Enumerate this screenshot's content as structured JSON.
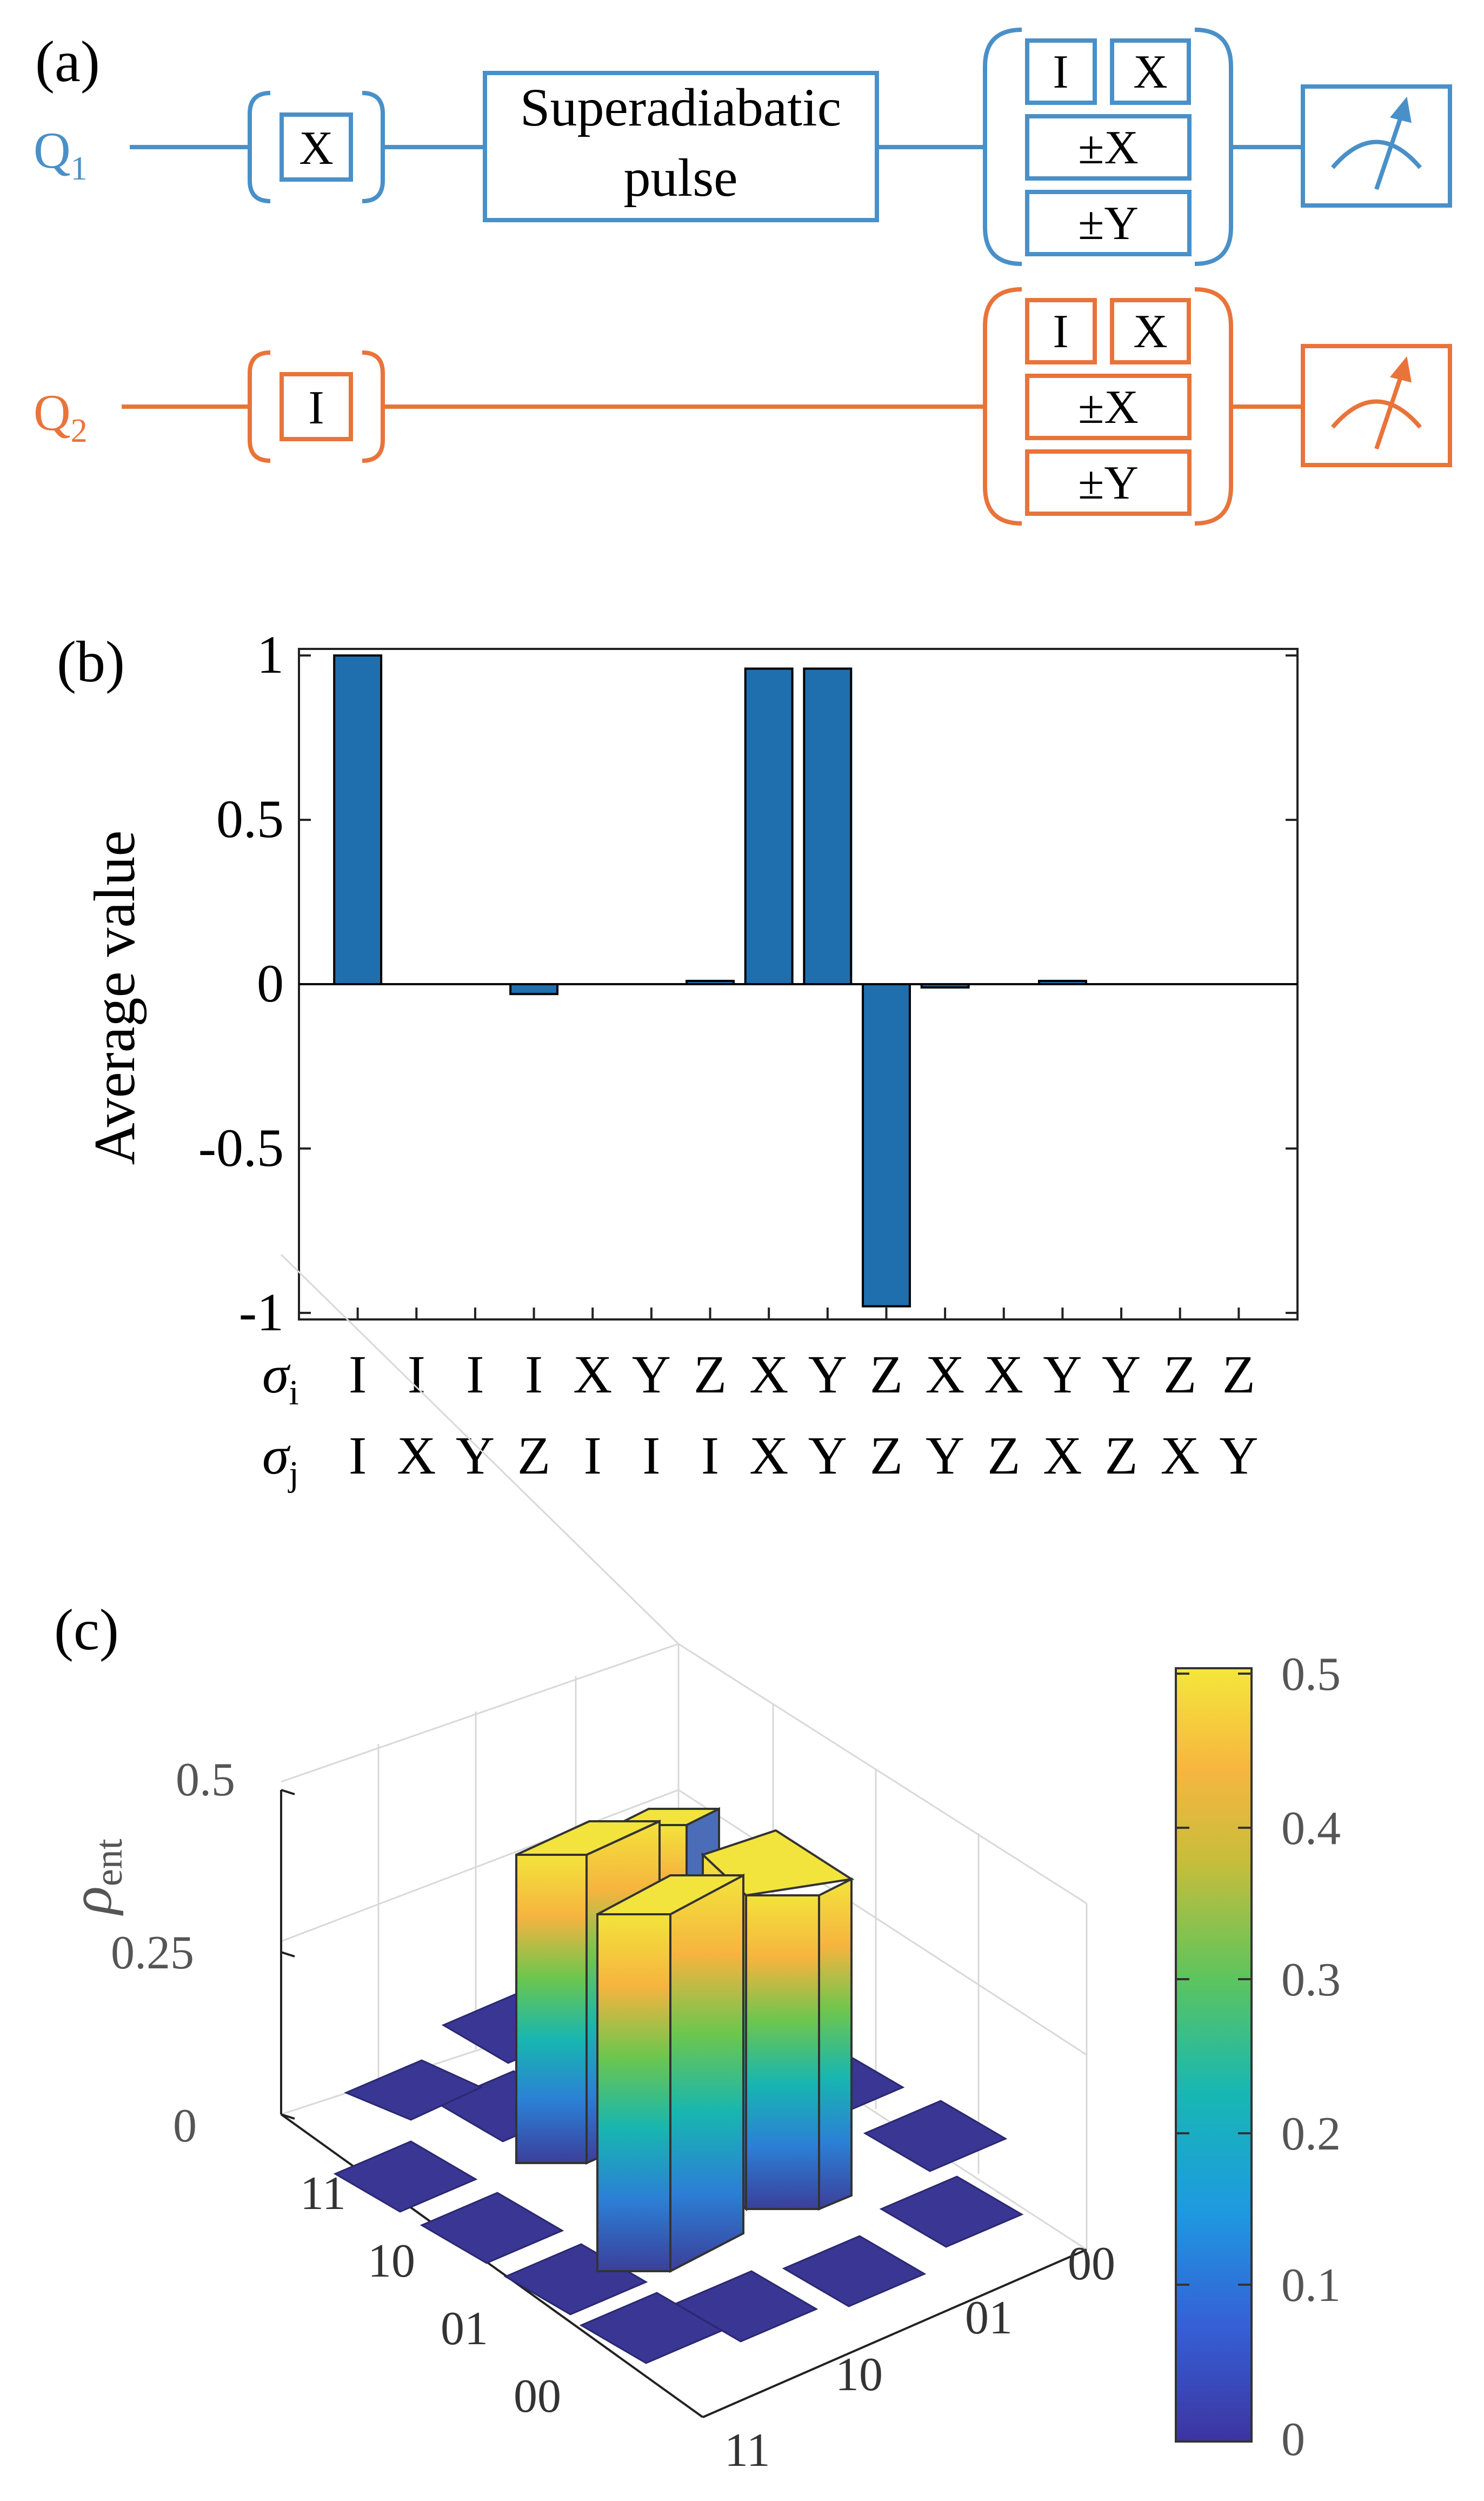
{
  "panels": {
    "a": "(a)",
    "b": "(b)",
    "c": "(c)"
  },
  "colors": {
    "q1": "#4a90c8",
    "q2": "#e8743b",
    "bar": "#1f6faf",
    "black": "#000000"
  },
  "circuit": {
    "q1": {
      "label": "Q",
      "sub": "1"
    },
    "q2": {
      "label": "Q",
      "sub": "2"
    },
    "q1_init_gate": "X",
    "q2_init_gate": "I",
    "pulse_line1": "Superadiabatic",
    "pulse_line2": "pulse",
    "tomo_i": "I",
    "tomo_x": "X",
    "tomo_px": "±X",
    "tomo_py": "±Y"
  },
  "chart_data": [
    {
      "type": "bar",
      "panel": "(b)",
      "ylabel": "Average value",
      "ylim": [
        -1.02,
        1.02
      ],
      "yticks": [
        1,
        0.5,
        0,
        -0.5,
        -1
      ],
      "ytick_labels": [
        "1",
        "0.5",
        "0",
        "-0.5",
        "-1"
      ],
      "sigma_i_label": "σ",
      "sigma_i_sub": "i",
      "sigma_j_label": "σ",
      "sigma_j_sub": "j",
      "sigma_i": [
        "I",
        "I",
        "I",
        "I",
        "X",
        "Y",
        "Z",
        "X",
        "Y",
        "Z",
        "X",
        "X",
        "Y",
        "Y",
        "Z",
        "Z"
      ],
      "sigma_j": [
        "I",
        "X",
        "Y",
        "Z",
        "I",
        "I",
        "I",
        "X",
        "Y",
        "Z",
        "Y",
        "Z",
        "X",
        "Z",
        "X",
        "Y"
      ],
      "values": [
        1.0,
        0.0,
        0.0,
        -0.03,
        0.0,
        0.0,
        0.01,
        0.96,
        0.96,
        -0.98,
        -0.01,
        0.0,
        0.01,
        0.0,
        0.0,
        0.0
      ]
    },
    {
      "type": "bar3d",
      "panel": "(c)",
      "zlabel": "ρ",
      "zlabel_sub": "ent",
      "zticks": [
        "0",
        "0.25",
        "0.5"
      ],
      "row_labels": [
        "11",
        "10",
        "01",
        "00"
      ],
      "col_labels": [
        "00",
        "01",
        "10",
        "11"
      ],
      "zlim": [
        0,
        0.5
      ],
      "matrix_rows": [
        "00",
        "01",
        "10",
        "11"
      ],
      "matrix_cols": [
        "00",
        "01",
        "10",
        "11"
      ],
      "values": [
        [
          0.0,
          0.0,
          0.0,
          0.0
        ],
        [
          0.0,
          0.5,
          0.5,
          0.0
        ],
        [
          0.0,
          0.5,
          0.5,
          0.0
        ],
        [
          0.0,
          0.0,
          0.0,
          0.0
        ]
      ],
      "colorbar": {
        "ticks": [
          "0.5",
          "0.4",
          "0.3",
          "0.2",
          "0.1",
          "0"
        ],
        "range": [
          0,
          0.5
        ]
      }
    }
  ]
}
